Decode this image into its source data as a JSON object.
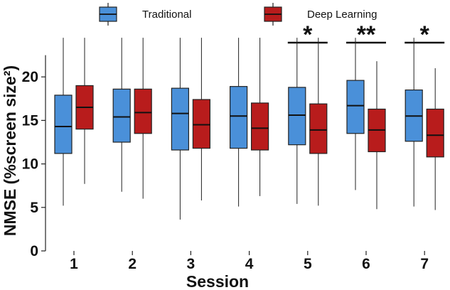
{
  "chart_data": {
    "type": "box",
    "xlabel": "Session",
    "ylabel": "NMSE (%screen size²)",
    "ylim": [
      0,
      25
    ],
    "yticks": [
      0,
      5,
      10,
      15,
      20
    ],
    "categories": [
      "1",
      "2",
      "3",
      "4",
      "5",
      "6",
      "7"
    ],
    "legend_position": "top",
    "grid": false,
    "series": [
      {
        "name": "Traditional",
        "color": "#4a90d9",
        "boxes": [
          {
            "min": 5.2,
            "q1": 11.2,
            "median": 14.3,
            "q3": 17.9,
            "max": 24.5
          },
          {
            "min": 6.8,
            "q1": 12.5,
            "median": 15.4,
            "q3": 18.6,
            "max": 24.5
          },
          {
            "min": 3.6,
            "q1": 11.6,
            "median": 15.8,
            "q3": 18.7,
            "max": 24.5
          },
          {
            "min": 5.1,
            "q1": 11.8,
            "median": 15.5,
            "q3": 18.9,
            "max": 24.5
          },
          {
            "min": 5.4,
            "q1": 12.2,
            "median": 15.6,
            "q3": 18.8,
            "max": 24.5
          },
          {
            "min": 7.0,
            "q1": 13.5,
            "median": 16.7,
            "q3": 19.6,
            "max": 24.5
          },
          {
            "min": 5.1,
            "q1": 12.6,
            "median": 15.5,
            "q3": 18.5,
            "max": 24.5
          }
        ]
      },
      {
        "name": "Deep Learning",
        "color": "#b81c1c",
        "boxes": [
          {
            "min": 7.7,
            "q1": 14.0,
            "median": 16.5,
            "q3": 19.0,
            "max": 24.5
          },
          {
            "min": 6.0,
            "q1": 13.5,
            "median": 15.9,
            "q3": 18.6,
            "max": 24.5
          },
          {
            "min": 5.8,
            "q1": 11.8,
            "median": 14.5,
            "q3": 17.4,
            "max": 24.5
          },
          {
            "min": 6.3,
            "q1": 11.6,
            "median": 14.1,
            "q3": 17.0,
            "max": 24.5
          },
          {
            "min": 5.2,
            "q1": 11.2,
            "median": 13.9,
            "q3": 16.9,
            "max": 24.5
          },
          {
            "min": 4.8,
            "q1": 11.4,
            "median": 13.9,
            "q3": 16.3,
            "max": 21.8
          },
          {
            "min": 4.7,
            "q1": 10.8,
            "median": 13.3,
            "q3": 16.3,
            "max": 21.0
          }
        ]
      }
    ],
    "significance": [
      {
        "session": "5",
        "label": "*"
      },
      {
        "session": "6",
        "label": "**"
      },
      {
        "session": "7",
        "label": "*"
      }
    ]
  }
}
